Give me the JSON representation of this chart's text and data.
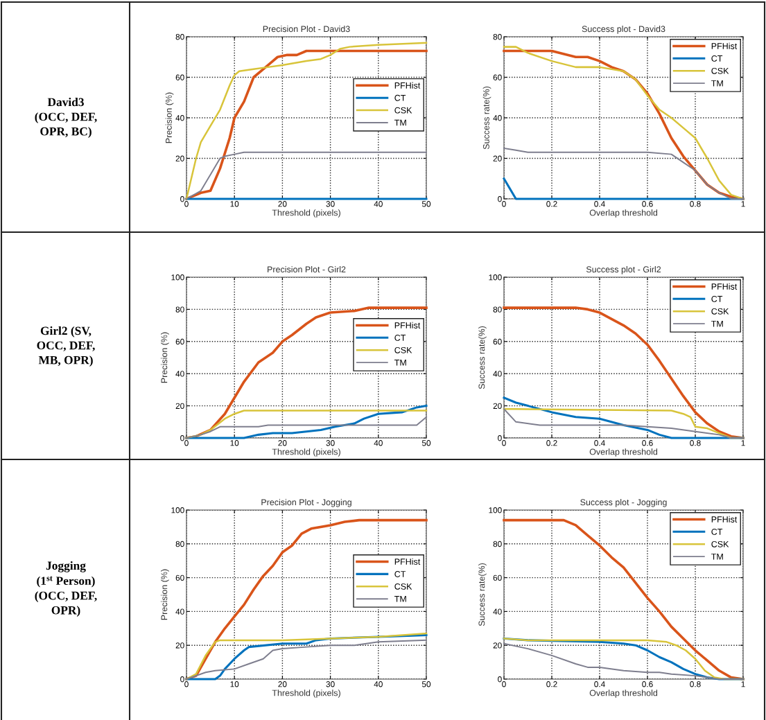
{
  "chart_data": [
    {
      "type": "other",
      "annotations": [
        "David3\n(OCC, DEF,\nOPR, BC)"
      ]
    },
    {
      "type": "line",
      "title": "Precision Plot - David3",
      "xlabel": "Threshold (pixels)",
      "ylabel": "Precision (%)",
      "xlim": [
        0,
        50
      ],
      "ylim": [
        0,
        80
      ],
      "xticks": [
        0,
        10,
        20,
        30,
        40,
        50
      ],
      "yticks": [
        0,
        20,
        40,
        60,
        80
      ],
      "grid": true,
      "legend": "right",
      "marker": "none",
      "line_style": "solid",
      "series": [
        {
          "name": "PFHist",
          "color": "#d9541a",
          "x": [
            0,
            3,
            5,
            7,
            9,
            10,
            12,
            14,
            16,
            18,
            19,
            21,
            23,
            25,
            30,
            50
          ],
          "values": [
            0,
            3,
            4,
            15,
            30,
            40,
            48,
            60,
            64,
            68,
            70,
            71,
            71,
            73,
            73,
            73
          ]
        },
        {
          "name": "CT",
          "color": "#0072bd",
          "x": [
            0,
            50
          ],
          "values": [
            0,
            0
          ]
        },
        {
          "name": "CSK",
          "color": "#d8c43a",
          "x": [
            0,
            2,
            3,
            5,
            7,
            9,
            10,
            11,
            14,
            17,
            20,
            25,
            28,
            30,
            32,
            34,
            40,
            50
          ],
          "values": [
            0,
            20,
            28,
            36,
            44,
            56,
            61,
            63,
            64,
            65,
            66,
            68,
            69,
            71,
            74,
            75,
            76,
            77
          ]
        },
        {
          "name": "TM",
          "color": "#7e7e8e",
          "x": [
            0,
            3,
            5,
            7,
            8,
            10,
            12,
            50
          ],
          "values": [
            0,
            4,
            12,
            20,
            21,
            22,
            23,
            23
          ]
        }
      ]
    },
    {
      "type": "line",
      "title": "Success plot - David3",
      "xlabel": "Overlap threshold",
      "ylabel": "Success rate(%)",
      "xlim": [
        0,
        1
      ],
      "ylim": [
        0,
        80
      ],
      "xticks": [
        0,
        0.2,
        0.4,
        0.6,
        0.8,
        1
      ],
      "yticks": [
        0,
        20,
        40,
        60,
        80
      ],
      "grid": true,
      "legend": "upper right",
      "marker": "none",
      "line_style": "solid",
      "series": [
        {
          "name": "PFHist",
          "color": "#d9541a",
          "x": [
            0,
            0.2,
            0.3,
            0.35,
            0.4,
            0.45,
            0.5,
            0.55,
            0.6,
            0.65,
            0.7,
            0.75,
            0.8,
            0.85,
            0.9,
            0.95,
            1
          ],
          "values": [
            73,
            73,
            70,
            70,
            68,
            65,
            63,
            59,
            52,
            42,
            30,
            21,
            14,
            7,
            3,
            1,
            0
          ]
        },
        {
          "name": "CT",
          "color": "#0072bd",
          "x": [
            0,
            0.05,
            1
          ],
          "values": [
            10,
            0,
            0
          ]
        },
        {
          "name": "CSK",
          "color": "#d8c43a",
          "x": [
            0,
            0.05,
            0.1,
            0.2,
            0.3,
            0.4,
            0.5,
            0.55,
            0.6,
            0.65,
            0.7,
            0.75,
            0.8,
            0.85,
            0.9,
            0.95,
            1
          ],
          "values": [
            75,
            75,
            72,
            68,
            65,
            65,
            63,
            59,
            51,
            44,
            40,
            35,
            30,
            20,
            9,
            2,
            0
          ]
        },
        {
          "name": "TM",
          "color": "#7e7e8e",
          "x": [
            0,
            0.05,
            0.1,
            0.4,
            0.6,
            0.7,
            0.75,
            0.8,
            0.85,
            0.9,
            0.95,
            1
          ],
          "values": [
            25,
            24,
            23,
            23,
            23,
            22,
            18,
            14,
            7,
            3,
            0,
            0
          ]
        }
      ]
    },
    {
      "type": "other",
      "annotations": [
        "Girl2 (SV,\nOCC, DEF,\nMB, OPR)"
      ]
    },
    {
      "type": "line",
      "title": "Precision Plot - Girl2",
      "xlabel": "Threshold (pixels)",
      "ylabel": "Precision (%)",
      "xlim": [
        0,
        50
      ],
      "ylim": [
        0,
        100
      ],
      "xticks": [
        0,
        10,
        20,
        30,
        40,
        50
      ],
      "yticks": [
        0,
        20,
        40,
        60,
        80,
        100
      ],
      "grid": true,
      "legend": "right",
      "marker": "none",
      "line_style": "solid",
      "series": [
        {
          "name": "PFHist",
          "color": "#d9541a",
          "x": [
            0,
            2,
            5,
            8,
            10,
            12,
            15,
            18,
            20,
            22,
            25,
            27,
            30,
            35,
            38,
            50
          ],
          "values": [
            0,
            1,
            5,
            15,
            25,
            35,
            47,
            53,
            60,
            64,
            71,
            75,
            78,
            79,
            81,
            81
          ]
        },
        {
          "name": "CT",
          "color": "#0072bd",
          "x": [
            0,
            12,
            15,
            18,
            22,
            25,
            28,
            31,
            35,
            37,
            40,
            45,
            48,
            50
          ],
          "values": [
            0,
            0,
            2,
            3,
            3,
            4,
            5,
            7,
            9,
            12,
            15,
            16,
            19,
            20
          ]
        },
        {
          "name": "CSK",
          "color": "#d8c43a",
          "x": [
            0,
            3,
            5,
            8,
            10,
            12,
            50
          ],
          "values": [
            0,
            2,
            5,
            12,
            15,
            17,
            17
          ]
        },
        {
          "name": "TM",
          "color": "#7e7e8e",
          "x": [
            0,
            3,
            5,
            7,
            10,
            15,
            17,
            48,
            50
          ],
          "values": [
            0,
            2,
            4,
            7,
            7,
            7,
            8,
            8,
            13
          ]
        }
      ]
    },
    {
      "type": "line",
      "title": "Success plot - Girl2",
      "xlabel": "Overlap threshold",
      "ylabel": "Success rate(%)",
      "xlim": [
        0,
        1
      ],
      "ylim": [
        0,
        100
      ],
      "xticks": [
        0,
        0.2,
        0.4,
        0.6,
        0.8,
        1
      ],
      "yticks": [
        0,
        20,
        40,
        60,
        80,
        100
      ],
      "grid": true,
      "legend": "upper right",
      "marker": "none",
      "line_style": "solid",
      "series": [
        {
          "name": "PFHist",
          "color": "#d9541a",
          "x": [
            0,
            0.3,
            0.35,
            0.4,
            0.45,
            0.5,
            0.55,
            0.6,
            0.65,
            0.7,
            0.75,
            0.8,
            0.85,
            0.9,
            0.95,
            1
          ],
          "values": [
            81,
            81,
            80,
            78,
            74,
            70,
            65,
            58,
            48,
            37,
            26,
            16,
            9,
            4,
            1,
            0
          ]
        },
        {
          "name": "CT",
          "color": "#0072bd",
          "x": [
            0,
            0.05,
            0.1,
            0.2,
            0.3,
            0.4,
            0.5,
            0.6,
            0.65,
            0.7,
            1
          ],
          "values": [
            25,
            22,
            20,
            16,
            13,
            12,
            8,
            5,
            2,
            0,
            0
          ]
        },
        {
          "name": "CSK",
          "color": "#d8c43a",
          "x": [
            0,
            0.05,
            0.7,
            0.75,
            0.78,
            0.8,
            0.85,
            0.9,
            0.95,
            1
          ],
          "values": [
            18,
            18,
            17,
            15,
            13,
            7,
            6,
            3,
            0,
            0
          ]
        },
        {
          "name": "TM",
          "color": "#7e7e8e",
          "x": [
            0,
            0.05,
            0.15,
            0.5,
            0.6,
            0.7,
            0.8,
            0.9,
            0.95,
            1
          ],
          "values": [
            18,
            10,
            8,
            8,
            7,
            6,
            4,
            2,
            0,
            0
          ]
        }
      ]
    },
    {
      "type": "other",
      "annotations": [
        "Jogging\n(1$^{st}$ Person)\n(OCC, DEF,\nOPR)"
      ]
    },
    {
      "type": "line",
      "title": "Precision Plot - Jogging",
      "xlabel": "Threshold (pixels)",
      "ylabel": "Precision (%)",
      "xlim": [
        0,
        50
      ],
      "ylim": [
        0,
        100
      ],
      "xticks": [
        0,
        10,
        20,
        30,
        40,
        50
      ],
      "yticks": [
        0,
        20,
        40,
        60,
        80,
        100
      ],
      "grid": true,
      "legend": "right",
      "marker": "none",
      "line_style": "solid",
      "series": [
        {
          "name": "PFHist",
          "color": "#d9541a",
          "x": [
            0,
            2,
            4,
            6,
            8,
            10,
            12,
            14,
            16,
            18,
            20,
            22,
            24,
            26,
            30,
            33,
            36,
            50
          ],
          "values": [
            0,
            2,
            12,
            22,
            30,
            37,
            44,
            53,
            61,
            67,
            75,
            79,
            86,
            89,
            91,
            93,
            94,
            94
          ]
        },
        {
          "name": "CT",
          "color": "#0072bd",
          "x": [
            0,
            6,
            7,
            8,
            10,
            12,
            13,
            20,
            25,
            27,
            30,
            40,
            50
          ],
          "values": [
            0,
            0,
            2,
            6,
            12,
            17,
            19,
            21,
            21,
            23,
            24,
            25,
            26
          ]
        },
        {
          "name": "CSK",
          "color": "#d8c43a",
          "x": [
            0,
            2,
            4,
            6,
            7,
            20,
            30,
            40,
            50
          ],
          "values": [
            0,
            3,
            14,
            22,
            23,
            23,
            24,
            25,
            27
          ]
        },
        {
          "name": "TM",
          "color": "#7e7e8e",
          "x": [
            0,
            4,
            6,
            10,
            13,
            16,
            18,
            20,
            25,
            30,
            35,
            40,
            50
          ],
          "values": [
            0,
            4,
            5,
            6,
            9,
            12,
            17,
            18,
            19,
            20,
            20,
            22,
            23
          ]
        }
      ]
    },
    {
      "type": "line",
      "title": "Success plot - Jogging",
      "xlabel": "Overlap threshold",
      "ylabel": "Success rate(%)",
      "xlim": [
        0,
        1
      ],
      "ylim": [
        0,
        100
      ],
      "xticks": [
        0,
        0.2,
        0.4,
        0.6,
        0.8,
        1
      ],
      "yticks": [
        0,
        20,
        40,
        60,
        80,
        100
      ],
      "grid": true,
      "legend": "upper right",
      "marker": "none",
      "line_style": "solid",
      "series": [
        {
          "name": "PFHist",
          "color": "#d9541a",
          "x": [
            0,
            0.25,
            0.3,
            0.35,
            0.4,
            0.45,
            0.5,
            0.55,
            0.6,
            0.65,
            0.7,
            0.75,
            0.8,
            0.85,
            0.9,
            0.95,
            1
          ],
          "values": [
            94,
            94,
            91,
            85,
            79,
            72,
            66,
            57,
            48,
            40,
            31,
            24,
            17,
            11,
            5,
            1,
            0
          ]
        },
        {
          "name": "CT",
          "color": "#0072bd",
          "x": [
            0,
            0.1,
            0.4,
            0.5,
            0.55,
            0.6,
            0.65,
            0.7,
            0.75,
            0.8,
            0.85,
            0.9,
            1
          ],
          "values": [
            24,
            23,
            22,
            21,
            20,
            17,
            13,
            10,
            6,
            3,
            1,
            0,
            0
          ]
        },
        {
          "name": "CSK",
          "color": "#d8c43a",
          "x": [
            0,
            0.1,
            0.6,
            0.68,
            0.72,
            0.76,
            0.8,
            0.84,
            0.88,
            0.92,
            1
          ],
          "values": [
            24,
            23,
            23,
            22,
            20,
            17,
            12,
            5,
            1,
            0,
            0
          ]
        },
        {
          "name": "TM",
          "color": "#7e7e8e",
          "x": [
            0,
            0.1,
            0.2,
            0.3,
            0.35,
            0.4,
            0.5,
            0.6,
            0.65,
            0.7,
            0.8,
            0.85,
            0.9,
            1
          ],
          "values": [
            21,
            18,
            14,
            9,
            7,
            7,
            5,
            4,
            4,
            3,
            2,
            1,
            0,
            0
          ]
        }
      ]
    }
  ]
}
